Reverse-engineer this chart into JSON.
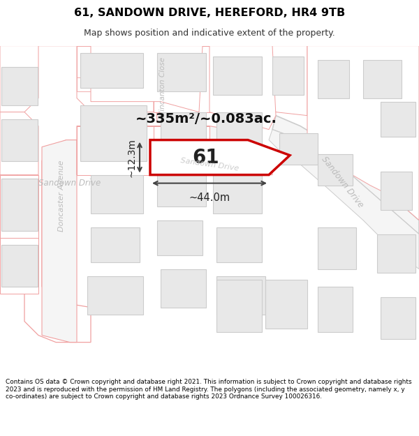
{
  "title": "61, SANDOWN DRIVE, HEREFORD, HR4 9TB",
  "subtitle": "Map shows position and indicative extent of the property.",
  "footer": "Contains OS data © Crown copyright and database right 2021. This information is subject to Crown copyright and database rights 2023 and is reproduced with the permission of HM Land Registry. The polygons (including the associated geometry, namely x, y co-ordinates) are subject to Crown copyright and database rights 2023 Ordnance Survey 100026316.",
  "area_label": "~335m²/~0.083ac.",
  "width_label": "~44.0m",
  "height_label": "~12.3m",
  "property_number": "61",
  "bg_color": "#ffffff",
  "road_outline_color": "#f0a0a0",
  "road_fill_color": "#ffffff",
  "road_label_color": "#bbbbbb",
  "building_fill": "#e8e8e8",
  "building_stroke": "#cccccc",
  "plot_fill": "#ffffff",
  "plot_stroke": "#dd0000",
  "dim_line_color": "#555555",
  "sandown_road_color": "#cccccc",
  "title_color": "#000000",
  "label_color": "#333333"
}
